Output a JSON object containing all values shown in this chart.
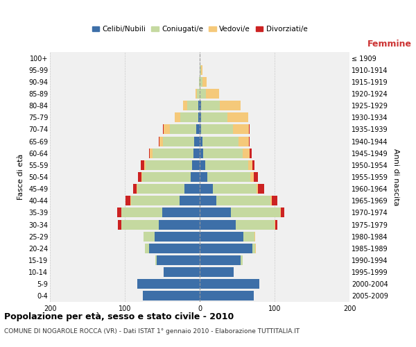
{
  "age_groups": [
    "0-4",
    "5-9",
    "10-14",
    "15-19",
    "20-24",
    "25-29",
    "30-34",
    "35-39",
    "40-44",
    "45-49",
    "50-54",
    "55-59",
    "60-64",
    "65-69",
    "70-74",
    "75-79",
    "80-84",
    "85-89",
    "90-94",
    "95-99",
    "100+"
  ],
  "birth_years": [
    "2005-2009",
    "2000-2004",
    "1995-1999",
    "1990-1994",
    "1985-1989",
    "1980-1984",
    "1975-1979",
    "1970-1974",
    "1965-1969",
    "1960-1964",
    "1955-1959",
    "1950-1954",
    "1945-1949",
    "1940-1944",
    "1935-1939",
    "1930-1934",
    "1925-1929",
    "1920-1924",
    "1915-1919",
    "1910-1914",
    "≤ 1909"
  ],
  "colors": {
    "celibe": "#3d6fa8",
    "coniugato": "#c5d9a0",
    "vedovo": "#f5c97a",
    "divorziato": "#cc2222"
  },
  "males": {
    "celibe": [
      76,
      83,
      48,
      57,
      68,
      60,
      55,
      50,
      27,
      20,
      12,
      10,
      8,
      7,
      5,
      2,
      2,
      0,
      0,
      0,
      0
    ],
    "coniugato": [
      0,
      0,
      0,
      2,
      5,
      15,
      50,
      55,
      65,
      63,
      65,
      62,
      55,
      42,
      35,
      24,
      15,
      4,
      1,
      0,
      0
    ],
    "vedovo": [
      0,
      0,
      0,
      0,
      0,
      0,
      0,
      0,
      1,
      1,
      1,
      2,
      4,
      5,
      8,
      7,
      5,
      2,
      0,
      0,
      0
    ],
    "divorziato": [
      0,
      0,
      0,
      0,
      0,
      0,
      4,
      5,
      6,
      5,
      4,
      5,
      1,
      1,
      1,
      0,
      0,
      0,
      0,
      0,
      0
    ]
  },
  "females": {
    "nubile": [
      72,
      80,
      45,
      55,
      70,
      58,
      48,
      42,
      22,
      18,
      10,
      7,
      5,
      4,
      2,
      2,
      2,
      0,
      0,
      0,
      0
    ],
    "coniugata": [
      0,
      0,
      0,
      2,
      4,
      15,
      52,
      65,
      72,
      58,
      58,
      58,
      52,
      48,
      42,
      35,
      25,
      8,
      4,
      2,
      0
    ],
    "vedova": [
      0,
      0,
      0,
      0,
      1,
      1,
      1,
      1,
      2,
      2,
      4,
      5,
      10,
      14,
      22,
      28,
      28,
      18,
      5,
      2,
      0
    ],
    "divorziata": [
      0,
      0,
      0,
      0,
      0,
      0,
      3,
      5,
      8,
      8,
      6,
      3,
      2,
      1,
      1,
      0,
      0,
      0,
      0,
      0,
      0
    ]
  },
  "legend_labels": [
    "Celibi/Nubili",
    "Coniugati/e",
    "Vedovi/e",
    "Divorziati/e"
  ],
  "title_main": "Popolazione per età, sesso e stato civile - 2010",
  "title_sub": "COMUNE DI NOGAROLE ROCCA (VR) - Dati ISTAT 1° gennaio 2010 - Elaborazione TUTTITALIA.IT",
  "label_femmine": "Femmine",
  "ylabel_left": "Fasce di età",
  "ylabel_right": "Anni di nascita",
  "xlim": 200,
  "background": "#ffffff",
  "plot_bg": "#f0f0f0",
  "grid_color": "#cccccc"
}
